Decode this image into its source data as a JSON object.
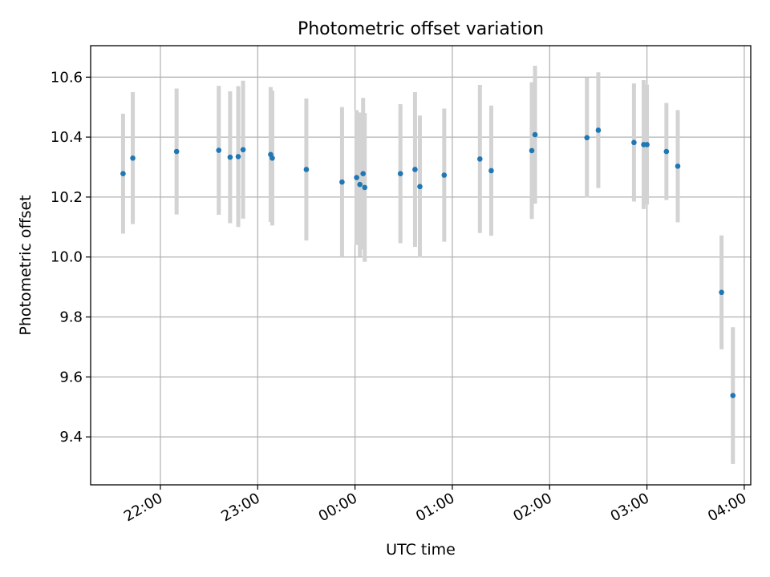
{
  "chart_data": {
    "type": "scatter",
    "title": "Photometric offset variation",
    "xlabel": "UTC time",
    "ylabel": "Photometric offset",
    "x_type": "time",
    "xlim": [
      "21:17",
      "04:04"
    ],
    "ylim": [
      9.24,
      10.705
    ],
    "x_ticks": [
      "22:00",
      "23:00",
      "00:00",
      "01:00",
      "02:00",
      "03:00",
      "04:00"
    ],
    "y_ticks": [
      9.4,
      9.6,
      9.8,
      10.0,
      10.2,
      10.4,
      10.6
    ],
    "y_tick_labels": [
      "9.4",
      "9.6",
      "9.8",
      "10.0",
      "10.2",
      "10.4",
      "10.6"
    ],
    "x_tick_rotation_deg": 30,
    "grid": true,
    "legend": "none",
    "colors": {
      "point": "#1f77b4",
      "errorbar": "#d3d3d3",
      "grid": "#b0b0b0"
    },
    "points": [
      {
        "x": "21:37",
        "y": 10.278,
        "err": 0.2
      },
      {
        "x": "21:43",
        "y": 10.33,
        "err": 0.22
      },
      {
        "x": "22:10",
        "y": 10.352,
        "err": 0.21
      },
      {
        "x": "22:36",
        "y": 10.356,
        "err": 0.215
      },
      {
        "x": "22:43",
        "y": 10.333,
        "err": 0.22
      },
      {
        "x": "22:48",
        "y": 10.335,
        "err": 0.235
      },
      {
        "x": "22:51",
        "y": 10.358,
        "err": 0.23
      },
      {
        "x": "23:08",
        "y": 10.342,
        "err": 0.225
      },
      {
        "x": "23:09",
        "y": 10.33,
        "err": 0.225
      },
      {
        "x": "23:30",
        "y": 10.292,
        "err": 0.237
      },
      {
        "x": "23:52",
        "y": 10.25,
        "err": 0.25
      },
      {
        "x": "00:01",
        "y": 10.265,
        "err": 0.225
      },
      {
        "x": "00:03",
        "y": 10.242,
        "err": 0.24
      },
      {
        "x": "00:05",
        "y": 10.278,
        "err": 0.253
      },
      {
        "x": "00:06",
        "y": 10.232,
        "err": 0.248
      },
      {
        "x": "00:28",
        "y": 10.278,
        "err": 0.232
      },
      {
        "x": "00:37",
        "y": 10.292,
        "err": 0.258
      },
      {
        "x": "00:40",
        "y": 10.235,
        "err": 0.237
      },
      {
        "x": "00:55",
        "y": 10.273,
        "err": 0.222
      },
      {
        "x": "01:17",
        "y": 10.327,
        "err": 0.247
      },
      {
        "x": "01:24",
        "y": 10.288,
        "err": 0.217
      },
      {
        "x": "01:49",
        "y": 10.355,
        "err": 0.228
      },
      {
        "x": "01:51",
        "y": 10.408,
        "err": 0.23
      },
      {
        "x": "02:23",
        "y": 10.398,
        "err": 0.2
      },
      {
        "x": "02:30",
        "y": 10.423,
        "err": 0.193
      },
      {
        "x": "02:52",
        "y": 10.382,
        "err": 0.197
      },
      {
        "x": "02:58",
        "y": 10.375,
        "err": 0.215
      },
      {
        "x": "03:00",
        "y": 10.375,
        "err": 0.2
      },
      {
        "x": "03:12",
        "y": 10.352,
        "err": 0.162
      },
      {
        "x": "03:19",
        "y": 10.303,
        "err": 0.187
      },
      {
        "x": "03:46",
        "y": 9.882,
        "err": 0.19
      },
      {
        "x": "03:53",
        "y": 9.538,
        "err": 0.228
      }
    ]
  }
}
